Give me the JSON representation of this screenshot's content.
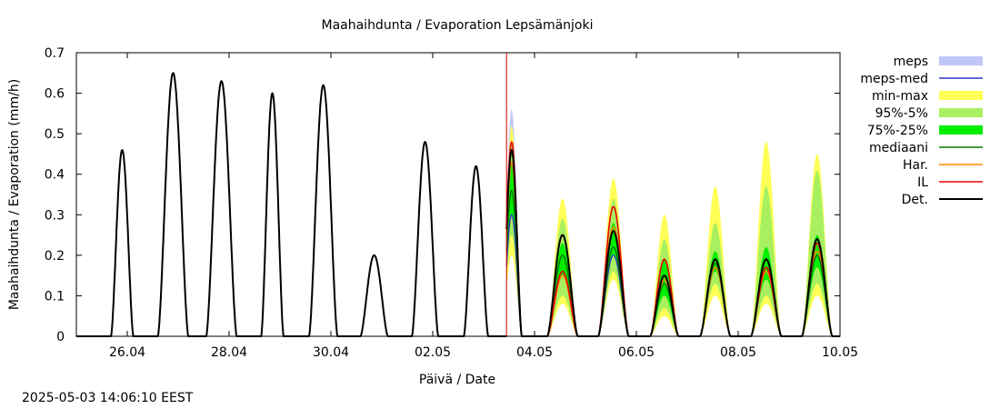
{
  "chart_data": {
    "type": "line",
    "title": "Maahaihdunta / Evaporation  Lepsämänjoki",
    "xlabel": "Päivä / Date",
    "ylabel": "Maahaihdunta / Evaporation (mm/h)",
    "xlim": [
      0,
      15
    ],
    "ylim": [
      0,
      0.7
    ],
    "y_ticks": [
      "0",
      "0.1",
      "0.2",
      "0.3",
      "0.4",
      "0.5",
      "0.6",
      "0.7"
    ],
    "y_tick_values": [
      0,
      0.1,
      0.2,
      0.3,
      0.4,
      0.5,
      0.6,
      0.7
    ],
    "x_ticks": [
      {
        "label": "26.04",
        "day": 1
      },
      {
        "label": "28.04",
        "day": 3
      },
      {
        "label": "30.04",
        "day": 5
      },
      {
        "label": "02.05",
        "day": 7
      },
      {
        "label": "04.05",
        "day": 9
      },
      {
        "label": "06.05",
        "day": 11
      },
      {
        "label": "08.05",
        "day": 13
      },
      {
        "label": "10.05",
        "day": 15
      }
    ],
    "forecast_start_day": 8.45,
    "grid": false,
    "legend_position": "right",
    "legend": [
      {
        "label": "meps",
        "color": "#c0c6f8",
        "kind": "band"
      },
      {
        "label": "meps-med",
        "color": "#3333cc",
        "kind": "line"
      },
      {
        "label": "min-max",
        "color": "#ffff55",
        "kind": "band"
      },
      {
        "label": "95%-5%",
        "color": "#a8f060",
        "kind": "band"
      },
      {
        "label": "75%-25%",
        "color": "#00ee00",
        "kind": "band"
      },
      {
        "label": "mediaani",
        "color": "#007a00",
        "kind": "line"
      },
      {
        "label": "Har.",
        "color": "#ff8800",
        "kind": "line"
      },
      {
        "label": "IL",
        "color": "#ee0000",
        "kind": "line"
      },
      {
        "label": "Det.",
        "color": "#000000",
        "kind": "line"
      }
    ],
    "observed_daily_peaks": {
      "series": "Det.",
      "days": [
        0.9,
        1.9,
        2.85,
        3.85,
        4.85,
        5.85,
        6.85,
        7.85
      ],
      "peak_values": [
        0.46,
        0.65,
        0.63,
        0.6,
        0.62,
        0.2,
        0.48,
        0.42
      ],
      "half_widths": [
        0.22,
        0.3,
        0.3,
        0.22,
        0.28,
        0.27,
        0.26,
        0.24
      ]
    },
    "forecast_daily_peaks": {
      "days": [
        8.55,
        9.55,
        10.55,
        11.55,
        12.55,
        13.55,
        14.55
      ],
      "half_widths": [
        0.2,
        0.3,
        0.3,
        0.28,
        0.3,
        0.3,
        0.3
      ],
      "Det.": [
        0.46,
        0.25,
        0.26,
        0.15,
        0.19,
        0.19,
        0.24
      ],
      "mediaani": [
        0.36,
        0.2,
        0.22,
        0.13,
        0.18,
        0.17,
        0.2
      ],
      "IL": [
        0.48,
        0.16,
        0.32,
        0.19,
        0.19,
        0.17,
        0.23
      ],
      "Har.": [
        0.43,
        0.15,
        0.27,
        0.14,
        0.17,
        0.16,
        0.21
      ],
      "meps-med": [
        0.3,
        0.16,
        0.2,
        0.14,
        0.17,
        0.16,
        0.2
      ],
      "min": [
        0.2,
        0.08,
        0.14,
        0.05,
        0.1,
        0.08,
        0.1
      ],
      "max": [
        0.52,
        0.34,
        0.39,
        0.3,
        0.37,
        0.48,
        0.45
      ],
      "p5": [
        0.25,
        0.1,
        0.16,
        0.07,
        0.13,
        0.1,
        0.13
      ],
      "p95": [
        0.48,
        0.29,
        0.34,
        0.24,
        0.28,
        0.37,
        0.41
      ],
      "p25": [
        0.3,
        0.15,
        0.2,
        0.1,
        0.16,
        0.14,
        0.17
      ],
      "p75": [
        0.43,
        0.23,
        0.28,
        0.19,
        0.21,
        0.22,
        0.25
      ],
      "meps_min": [
        0.22,
        0.1,
        0.17,
        0.1,
        0.14,
        0.13,
        0.15
      ],
      "meps_max": [
        0.56,
        0.19,
        0.35,
        0.18,
        0.2,
        0.2,
        0.24
      ]
    }
  },
  "footer": {
    "timestamp": "2025-05-03 14:06:10 EEST"
  }
}
